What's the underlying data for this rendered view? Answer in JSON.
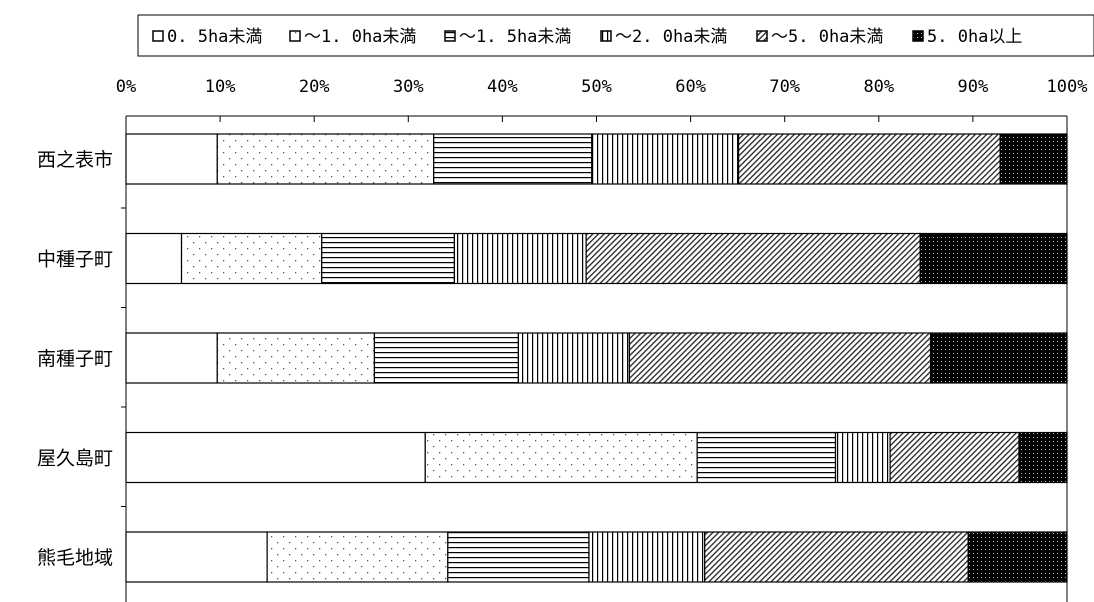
{
  "chart_data": {
    "type": "bar",
    "orientation": "horizontal",
    "stacked": "percent",
    "categories": [
      "西之表市",
      "中種子町",
      "南種子町",
      "屋久島町",
      "熊毛地域"
    ],
    "series": [
      {
        "name": "0. 5ha未満",
        "values": [
          9.7,
          5.9,
          9.7,
          31.8,
          15.0
        ]
      },
      {
        "name": "～1. 0ha未満",
        "values": [
          23.0,
          14.9,
          16.7,
          28.9,
          19.2
        ]
      },
      {
        "name": "～1. 5ha未満",
        "values": [
          16.8,
          14.1,
          15.3,
          14.7,
          15.0
        ]
      },
      {
        "name": "～2. 0ha未満",
        "values": [
          15.6,
          14.0,
          11.8,
          5.8,
          12.3
        ]
      },
      {
        "name": "～5. 0ha未満",
        "values": [
          27.8,
          35.5,
          32.0,
          13.7,
          28.0
        ]
      },
      {
        "name": "5. 0ha以上",
        "values": [
          7.1,
          15.6,
          14.5,
          5.1,
          10.5
        ]
      }
    ],
    "xaxis": {
      "ticks": [
        "0%",
        "10%",
        "20%",
        "30%",
        "40%",
        "50%",
        "60%",
        "70%",
        "80%",
        "90%",
        "100%"
      ],
      "range": [
        0,
        100
      ],
      "position": "top"
    },
    "grid": false,
    "legend": {
      "position": "top-right"
    }
  }
}
